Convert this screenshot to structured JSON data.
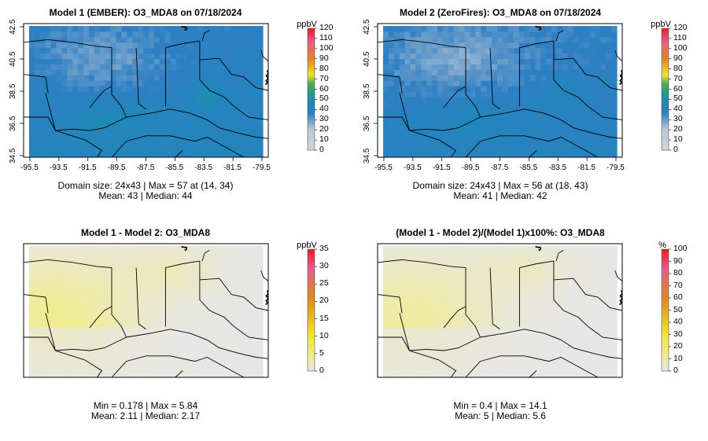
{
  "chart_data": [
    {
      "type": "heatmap",
      "title": "Model 1 (EMBER): O3_MDA8 on 07/18/2024",
      "colorbar_label": "ppbV",
      "colorbar_ticks": [
        "0",
        "10",
        "20",
        "30",
        "40",
        "50",
        "60",
        "70",
        "80",
        "90",
        "100",
        "110",
        "120"
      ],
      "colorbar_range": [
        0,
        120
      ],
      "x_ticks": [
        "-95.5",
        "-93.5",
        "-91.5",
        "-89.5",
        "-87.5",
        "-85.5",
        "-83.5",
        "-81.5",
        "-79.5"
      ],
      "y_ticks": [
        "34.5",
        "36.5",
        "38.5",
        "40.5",
        "42.5"
      ],
      "stats_line1": "Domain size: 24x43 | Max = 57 at (14, 34)",
      "stats_line2": "Mean: 43 |  Median: 44",
      "field_mean": 43,
      "field_max": 57
    },
    {
      "type": "heatmap",
      "title": "Model 2 (ZeroFires): O3_MDA8 on 07/18/2024",
      "colorbar_label": "ppbV",
      "colorbar_ticks": [
        "0",
        "10",
        "20",
        "30",
        "40",
        "50",
        "60",
        "70",
        "80",
        "90",
        "100",
        "110",
        "120"
      ],
      "colorbar_range": [
        0,
        120
      ],
      "x_ticks": [
        "-95.5",
        "-93.5",
        "-91.5",
        "-89.5",
        "-87.5",
        "-85.5",
        "-83.5",
        "-81.5",
        "-79.5"
      ],
      "y_ticks": [
        "34.5",
        "36.5",
        "38.5",
        "40.5",
        "42.5"
      ],
      "stats_line1": "Domain size: 24x43 | Max = 56 at (18, 43)",
      "stats_line2": "Mean: 41 |  Median: 42",
      "field_mean": 41,
      "field_max": 56
    },
    {
      "type": "heatmap",
      "title": "Model 1 - Model 2: O3_MDA8",
      "colorbar_label": "ppbV",
      "colorbar_ticks": [
        "0",
        "5",
        "10",
        "15",
        "20",
        "25",
        "30",
        "35"
      ],
      "colorbar_range": [
        0,
        35
      ],
      "stats_line1": "Min = 0.178 | Max = 5.84",
      "stats_line2": "Mean: 2.11 |  Median: 2.17",
      "field_mean": 2.11,
      "field_max": 5.84
    },
    {
      "type": "heatmap",
      "title": "(Model 1 - Model 2)/(Model 1)x100%: O3_MDA8",
      "colorbar_label": "%",
      "colorbar_ticks": [
        "0",
        "10",
        "20",
        "30",
        "40",
        "50",
        "60",
        "70",
        "80",
        "90",
        "100"
      ],
      "colorbar_range": [
        0,
        100
      ],
      "stats_line1": "Min = 0.4 | Max = 14.1",
      "stats_line2": "Mean: 5 |  Median: 5.6",
      "field_mean": 5,
      "field_max": 14.1
    }
  ],
  "colors": {
    "scale_low": "#d6d6d6",
    "scale_blue": "#2e7fc4",
    "scale_teal": "#1f9e8a",
    "scale_green": "#4cad4c",
    "scale_yellow": "#f2e233",
    "scale_orange": "#e08a1e",
    "scale_red": "#ef1f2a",
    "diff_high": "#f5e577",
    "diff_low": "#e6e6e6"
  }
}
